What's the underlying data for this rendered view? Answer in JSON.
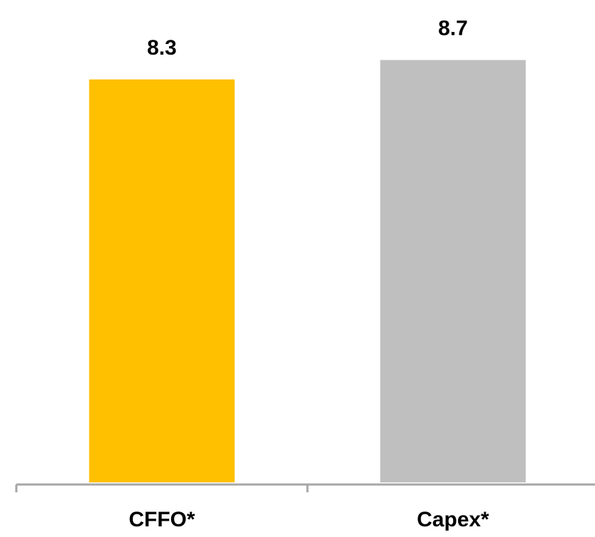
{
  "chart_data": {
    "type": "bar",
    "categories": [
      "CFFO*",
      "Capex*"
    ],
    "values": [
      8.3,
      8.7
    ],
    "data_labels": [
      "8.3",
      "8.7"
    ],
    "colors": [
      "#FFC000",
      "#BFBFBF"
    ],
    "axis_color": "#A6A6A6",
    "ylim": [
      0,
      9.5
    ],
    "grid": false,
    "legend": "none"
  }
}
